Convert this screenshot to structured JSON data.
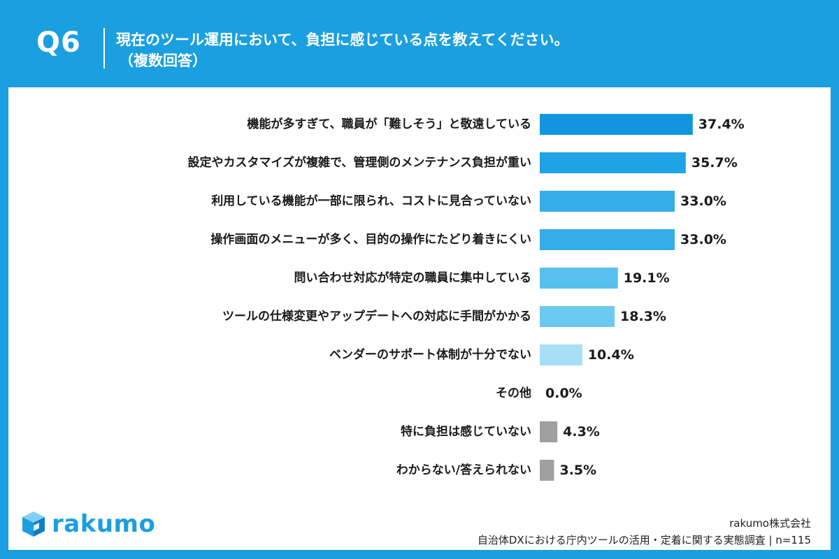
{
  "header": {
    "qnum": "Q6",
    "title": "現在のツール運用において、負担に感じている点を教えてください。",
    "subtitle": "（複数回答）"
  },
  "chart_data": {
    "type": "bar",
    "orientation": "horizontal",
    "categories": [
      "機能が多すぎて、職員が「難しそう」と敬遠している",
      "設定やカスタマイズが複雑で、管理側のメンテナンス負担が重い",
      "利用している機能が一部に限られ、コストに見合っていない",
      "操作画面のメニューが多く、目的の操作にたどり着きにくい",
      "問い合わせ対応が特定の職員に集中している",
      "ツールの仕様変更やアップデートへの対応に手間がかかる",
      "ベンダーのサポート体制が十分でない",
      "その他",
      "特に負担は感じていない",
      "わからない/答えられない"
    ],
    "values": [
      37.4,
      35.7,
      33.0,
      33.0,
      19.1,
      18.3,
      10.4,
      0.0,
      4.3,
      3.5
    ],
    "value_labels": [
      "37.4%",
      "35.7%",
      "33.0%",
      "33.0%",
      "19.1%",
      "18.3%",
      "10.4%",
      "0.0%",
      "4.3%",
      "3.5%"
    ],
    "colors": [
      "#1296e0",
      "#1fa2e6",
      "#34ade9",
      "#34ade9",
      "#58c0ee",
      "#6cc9f0",
      "#a6dff6",
      "#a6dff6",
      "#a0a0a0",
      "#a0a0a0"
    ],
    "grid": false
  },
  "footer": {
    "logo_text": "rakumo",
    "company": "rakumo株式会社",
    "survey": "自治体DXにおける庁内ツールの活用・定着に関する実態調査 | n=115"
  }
}
